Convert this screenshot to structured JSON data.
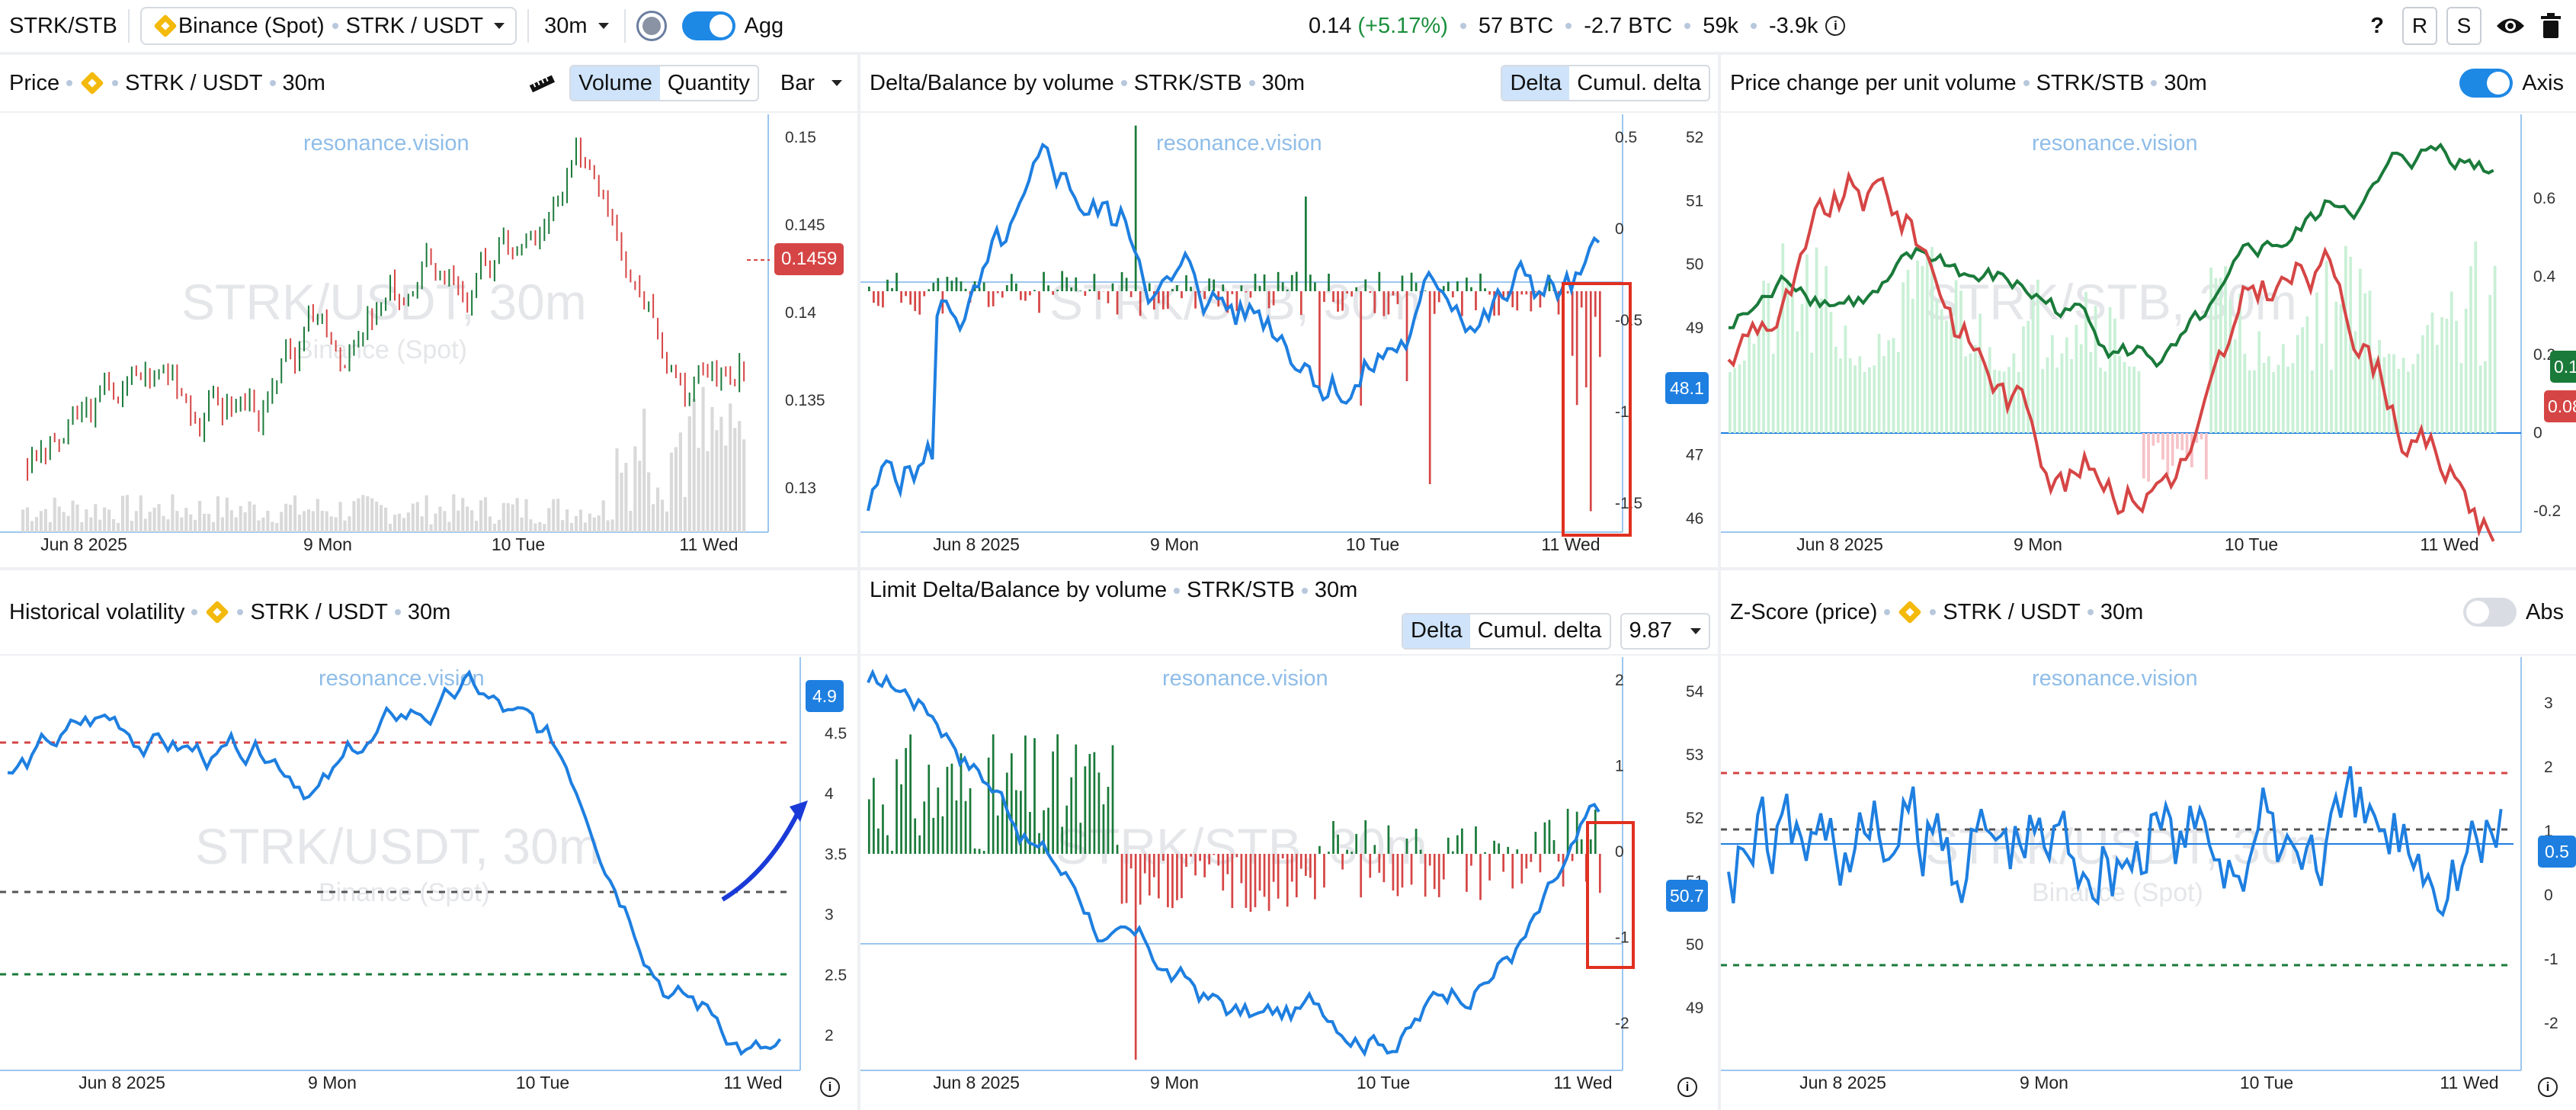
{
  "topbar": {
    "pair": "STRK/STB",
    "exchange": "Binance (Spot)",
    "symbol": "STRK / USDT",
    "interval": "30m",
    "agg_label": "Agg",
    "price": "0.14",
    "change": "(+5.17%)",
    "vol_btc": "57 BTC",
    "delta_btc": "-2.7 BTC",
    "trades": "59k",
    "trades_delta": "-3.9k",
    "help": "?",
    "r_btn": "R",
    "s_btn": "S"
  },
  "panels": {
    "price": {
      "title": "Price",
      "symbol": "STRK / USDT",
      "interval": "30m",
      "seg1": "Volume",
      "seg2": "Quantity",
      "chart_type": "Bar",
      "price_tag": "0.1459",
      "wm": "resonance.vision",
      "wm_big": "STRK/USDT, 30m",
      "wm_sub": "Binance (Spot)"
    },
    "delta": {
      "title": "Delta/Balance by volume",
      "symbol": "STRK/STB",
      "interval": "30m",
      "seg1": "Delta",
      "seg2": "Cumul. delta",
      "value_tag": "48.1",
      "wm": "resonance.vision",
      "wm_big": "STRK/STB, 30m"
    },
    "pcv": {
      "title": "Price change per unit volume",
      "symbol": "STRK/STB",
      "interval": "30m",
      "axis_label": "Axis",
      "tag_green": "0.1",
      "tag_red": "0.08",
      "wm": "resonance.vision",
      "wm_big": "STRK/STB, 30m"
    },
    "hv": {
      "title": "Historical volatility",
      "symbol": "STRK / USDT",
      "interval": "30m",
      "value_tag": "4.9",
      "wm": "resonance.vision",
      "wm_big": "STRK/USDT, 30m",
      "wm_sub": "Binance (Spot)"
    },
    "limit": {
      "title": "Limit Delta/Balance by volume",
      "symbol": "STRK/STB",
      "interval": "30m",
      "seg1": "Delta",
      "seg2": "Cumul. delta",
      "filter": "9.87",
      "value_tag": "50.7",
      "wm": "resonance.vision",
      "wm_big": "STRK/STB, 30m"
    },
    "zscore": {
      "title": "Z-Score (price)",
      "symbol": "STRK / USDT",
      "interval": "30m",
      "abs_label": "Abs",
      "value_tag": "0.5",
      "wm": "resonance.vision",
      "wm_big": "STRK/USDT, 30m",
      "wm_sub": "Binance (Spot)"
    }
  },
  "x_labels": [
    "Jun 8 2025",
    "9 Mon",
    "10 Tue",
    "11 Wed"
  ],
  "axes": {
    "price": [
      "0.15",
      "0.145",
      "0.14",
      "0.135",
      "0.13"
    ],
    "delta_left": [
      "0.5",
      "0",
      "-0.5",
      "-1",
      "-1.5"
    ],
    "delta_right": [
      "52",
      "51",
      "50",
      "49",
      "48",
      "47",
      "46"
    ],
    "pcv": [
      "0.6",
      "0.4",
      "0.2",
      "0",
      "-0.2"
    ],
    "hv": [
      "4.5",
      "4",
      "3.5",
      "3",
      "2.5",
      "2"
    ],
    "limit_left": [
      "2",
      "1",
      "0",
      "-1",
      "-2"
    ],
    "limit_right": [
      "54",
      "53",
      "52",
      "51",
      "50",
      "49"
    ],
    "zscore": [
      "3",
      "2",
      "1",
      "0",
      "-1",
      "-2"
    ]
  },
  "colors": {
    "up": "#1a7a3a",
    "down": "#d64545",
    "line": "#1e7fe0",
    "accent": "#1e88e5"
  },
  "icons": [
    "binance-icon",
    "ruler-icon",
    "info-icon",
    "eye-icon",
    "trash-icon",
    "record-icon",
    "chevron-down-icon"
  ]
}
